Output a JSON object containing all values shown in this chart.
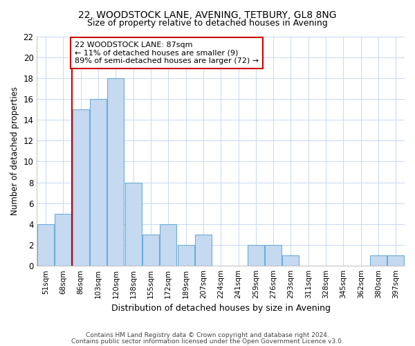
{
  "title1": "22, WOODSTOCK LANE, AVENING, TETBURY, GL8 8NG",
  "title2": "Size of property relative to detached houses in Avening",
  "xlabel": "Distribution of detached houses by size in Avening",
  "ylabel": "Number of detached properties",
  "categories": [
    "51sqm",
    "68sqm",
    "86sqm",
    "103sqm",
    "120sqm",
    "138sqm",
    "155sqm",
    "172sqm",
    "189sqm",
    "207sqm",
    "224sqm",
    "241sqm",
    "259sqm",
    "276sqm",
    "293sqm",
    "311sqm",
    "328sqm",
    "345sqm",
    "362sqm",
    "380sqm",
    "397sqm"
  ],
  "values": [
    4,
    5,
    15,
    16,
    18,
    8,
    3,
    4,
    2,
    3,
    0,
    0,
    2,
    2,
    1,
    0,
    0,
    0,
    0,
    1,
    1
  ],
  "bar_color": "#c5d9f0",
  "bar_edge_color": "#6baed6",
  "vline_color": "#cc0000",
  "annotation_text": "22 WOODSTOCK LANE: 87sqm\n← 11% of detached houses are smaller (9)\n89% of semi-detached houses are larger (72) →",
  "annotation_box_color": "#ffffff",
  "annotation_box_edge": "#cc0000",
  "ylim": [
    0,
    22
  ],
  "yticks": [
    0,
    2,
    4,
    6,
    8,
    10,
    12,
    14,
    16,
    18,
    20,
    22
  ],
  "footer1": "Contains HM Land Registry data © Crown copyright and database right 2024.",
  "footer2": "Contains public sector information licensed under the Open Government Licence v3.0.",
  "bg_color": "#ffffff",
  "grid_color": "#c8d8f0"
}
